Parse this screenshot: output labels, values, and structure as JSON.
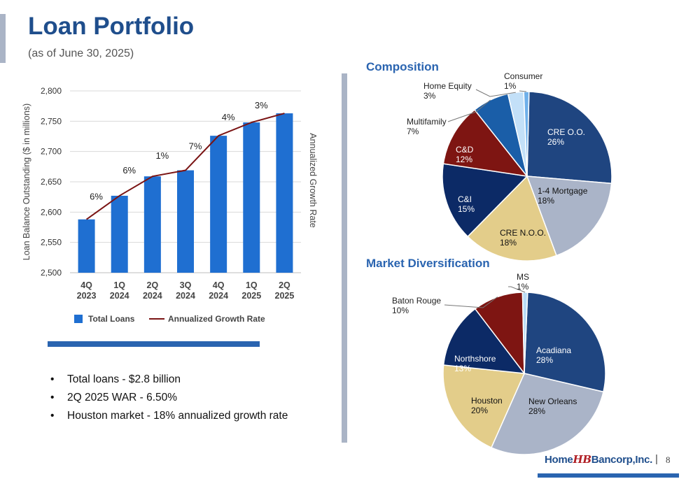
{
  "header": {
    "title": "Loan Portfolio",
    "subtitle": "(as of June 30, 2025)"
  },
  "footer": {
    "brand_left": "Home",
    "brand_mark": "HB",
    "brand_right": "Bancorp,Inc.",
    "separator": "|",
    "page_number": "8"
  },
  "sections": {
    "composition": "Composition",
    "market": "Market Diversification"
  },
  "bullets": [
    "Total loans - $2.8 billion",
    "2Q 2025 WAR - 6.50%",
    "Houston market - 18% annualized growth rate"
  ],
  "colors": {
    "title": "#1f4e8c",
    "bar": "#1f6fd1",
    "line": "#7a1414",
    "accent": "#2a64b0"
  },
  "chart_data": [
    {
      "type": "bar",
      "categories": [
        [
          "4Q",
          "2023"
        ],
        [
          "1Q",
          "2024"
        ],
        [
          "2Q",
          "2024"
        ],
        [
          "3Q",
          "2024"
        ],
        [
          "4Q",
          "2024"
        ],
        [
          "1Q",
          "2025"
        ],
        [
          "2Q",
          "2025"
        ]
      ],
      "series": [
        {
          "name": "Total Loans",
          "values": [
            2588,
            2627,
            2659,
            2669,
            2726,
            2748,
            2763
          ]
        },
        {
          "name": "Annualized Growth Rate",
          "type": "line",
          "values": [
            2588,
            2627,
            2659,
            2669,
            2726,
            2748,
            2763
          ]
        }
      ],
      "line_labels": [
        "6%",
        "6%",
        "1%",
        "7%",
        "4%",
        "3%"
      ],
      "ylabel": "Loan Balance Outstanding ($ in millions)",
      "y2label": "Annualized Growth Rate",
      "ylim": [
        2500,
        2800
      ],
      "yticks": [
        "2,500",
        "2,550",
        "2,600",
        "2,650",
        "2,700",
        "2,750",
        "2,800"
      ],
      "legend_position": "bottom",
      "grid": true
    },
    {
      "type": "pie",
      "slices": [
        {
          "label": "CRE O.O.",
          "value": 26,
          "text": "26%",
          "color": "#1f4580"
        },
        {
          "label": "1-4 Mortgage",
          "value": 18,
          "text": "18%",
          "color": "#aab4c8"
        },
        {
          "label": "CRE N.O.O.",
          "value": 18,
          "text": "18%",
          "color": "#e3cd8a"
        },
        {
          "label": "C&I",
          "value": 15,
          "text": "15%",
          "color": "#0c2a66"
        },
        {
          "label": "C&D",
          "value": 12,
          "text": "12%",
          "color": "#7e1512"
        },
        {
          "label": "Multifamily",
          "value": 7,
          "text": "7%",
          "color": "#1a5ea8"
        },
        {
          "label": "Home Equity",
          "value": 3,
          "text": "3%",
          "color": "#c3e0f8"
        },
        {
          "label": "Consumer",
          "value": 1,
          "text": "1%",
          "color": "#6fb0ea"
        }
      ]
    },
    {
      "type": "pie",
      "slices": [
        {
          "label": "Acadiana",
          "value": 28,
          "text": "28%",
          "color": "#1f4580"
        },
        {
          "label": "New Orleans",
          "value": 28,
          "text": "28%",
          "color": "#aab4c8"
        },
        {
          "label": "Houston",
          "value": 20,
          "text": "20%",
          "color": "#e3cd8a"
        },
        {
          "label": "Northshore",
          "value": 13,
          "text": "13%",
          "color": "#0c2a66"
        },
        {
          "label": "Baton Rouge",
          "value": 10,
          "text": "10%",
          "color": "#7e1512"
        },
        {
          "label": "MS",
          "value": 1,
          "text": "1%",
          "color": "#b9dcf6"
        }
      ]
    }
  ]
}
